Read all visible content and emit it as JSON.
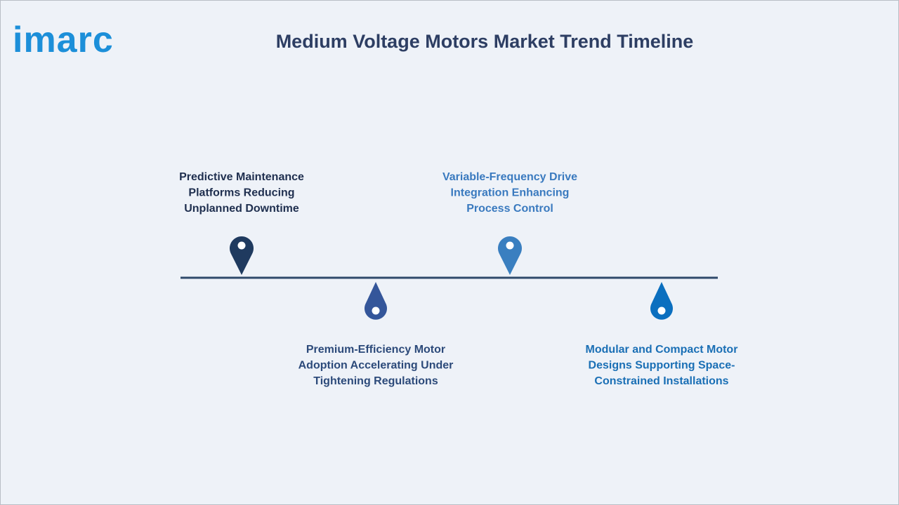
{
  "logo": "imarc",
  "title": "Medium Voltage Motors Market Trend Timeline",
  "events": [
    {
      "lines": [
        "Predictive Maintenance",
        "Platforms Reducing",
        "Unplanned Downtime"
      ]
    },
    {
      "lines": [
        "Premium-Efficiency Motor",
        "Adoption Accelerating Under",
        "Tightening Regulations"
      ]
    },
    {
      "lines": [
        "Variable-Frequency Drive",
        "Integration Enhancing",
        "Process Control"
      ]
    },
    {
      "lines": [
        "Modular and Compact Motor",
        "Designs Supporting Space-",
        "Constrained Installations"
      ]
    }
  ]
}
